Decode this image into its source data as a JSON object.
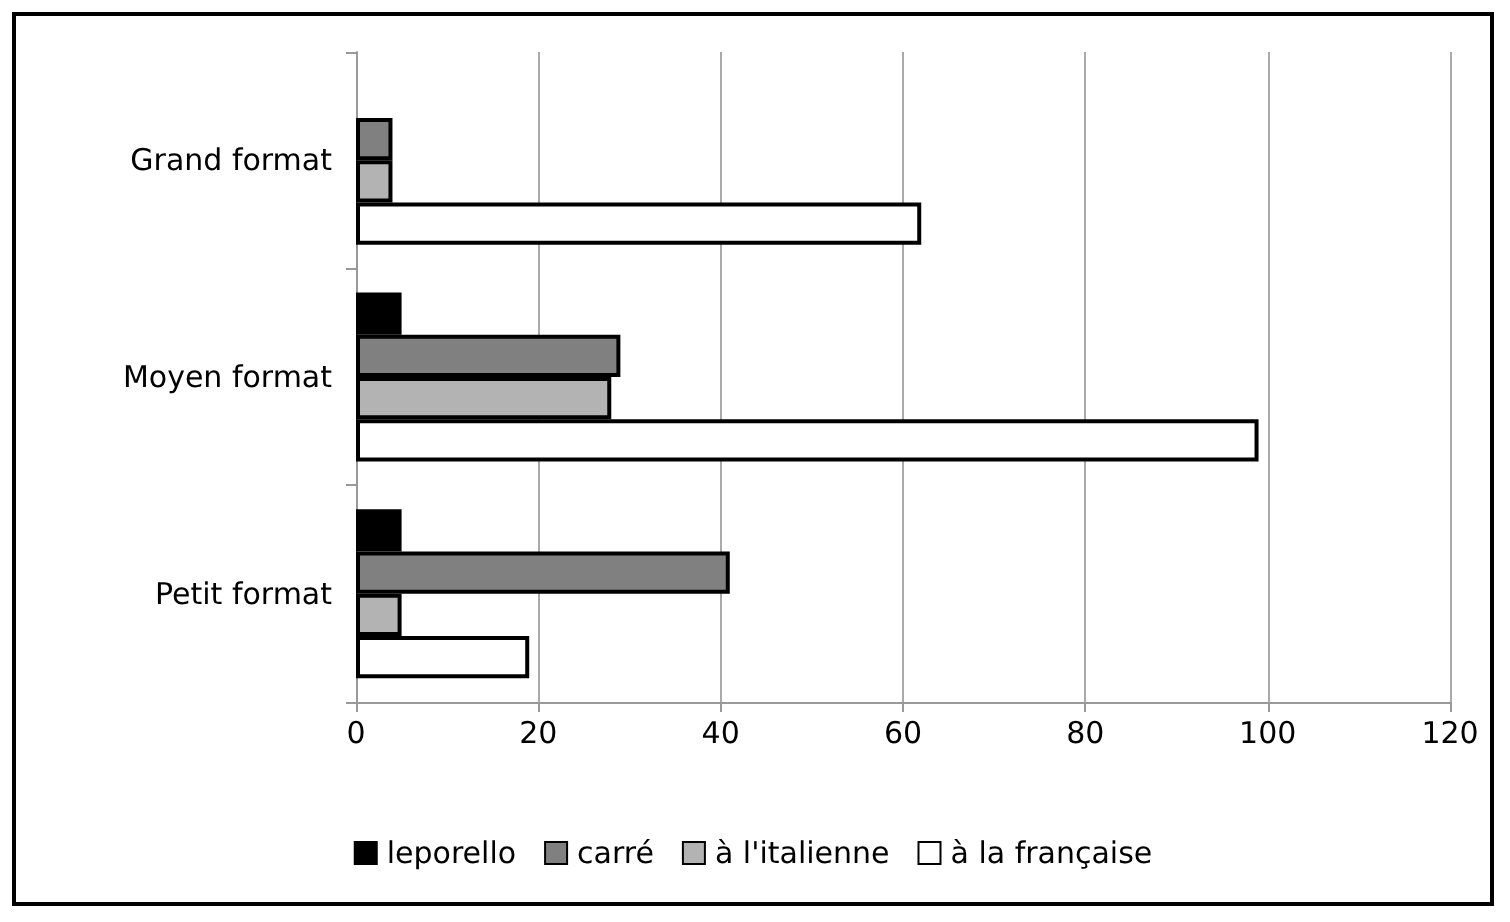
{
  "chart_data": {
    "type": "bar",
    "orientation": "horizontal",
    "categories": [
      "Grand format",
      "Moyen format",
      "Petit format"
    ],
    "series": [
      {
        "name": "leporello",
        "color": "#000000",
        "values": [
          null,
          5,
          5
        ]
      },
      {
        "name": "carré",
        "color": "#808080",
        "values": [
          4,
          29,
          41
        ]
      },
      {
        "name": "à l'italienne",
        "color": "#b3b3b3",
        "values": [
          4,
          28,
          5
        ]
      },
      {
        "name": "à la française",
        "color": "#ffffff",
        "values": [
          62,
          99,
          19
        ]
      }
    ],
    "xlim": [
      0,
      120
    ],
    "xticks": [
      0,
      20,
      40,
      60,
      80,
      100,
      120
    ],
    "grid": "x",
    "legend": "bottom"
  }
}
